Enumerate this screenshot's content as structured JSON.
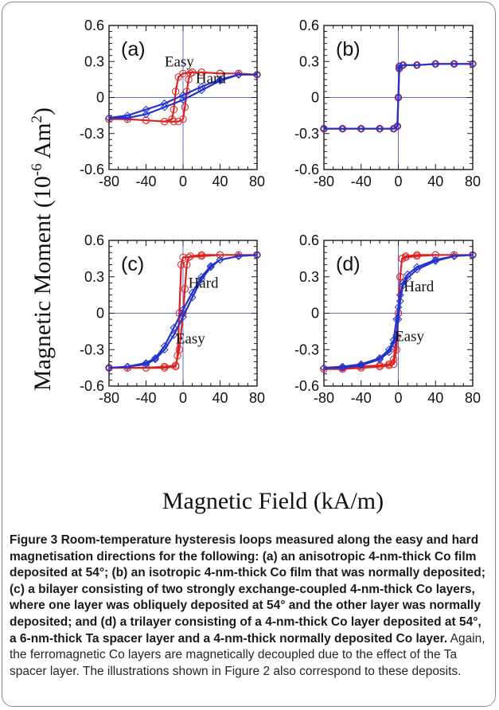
{
  "figure": {
    "y_axis_label": "Magnetic Moment (10",
    "y_axis_label_sup1": "-6",
    "y_axis_label_mid": " Am",
    "y_axis_label_sup2": "2",
    "y_axis_label_end": ")",
    "x_axis_label": "Magnetic Field (kA/m)"
  },
  "chart_data": [
    {
      "type": "line",
      "panel_label": "(a)",
      "x_ticks": [
        "-80",
        "-40",
        "0",
        "40",
        "80"
      ],
      "y_ticks": [
        "0.6",
        "0.3",
        "0",
        "-0.3",
        "-0.6"
      ],
      "xlim": [
        -80,
        80
      ],
      "ylim": [
        -0.6,
        0.6
      ],
      "grid": "zero lines only",
      "annotations": [
        {
          "text": "Easy",
          "x": -4,
          "y": 0.26
        },
        {
          "text": "Hard",
          "x": 30,
          "y": 0.12
        }
      ],
      "series": [
        {
          "role": "easy",
          "color": "#dd2222",
          "marker": "circle",
          "x": [
            -80,
            -60,
            -40,
            -20,
            -10,
            -5,
            0,
            2,
            4,
            6,
            8,
            10,
            20,
            40,
            60,
            80,
            60,
            40,
            20,
            10,
            0,
            -5,
            -8,
            -10,
            -12,
            -20,
            -40,
            -60,
            -80
          ],
          "y": [
            -0.18,
            -0.18,
            -0.19,
            -0.2,
            -0.2,
            -0.2,
            -0.18,
            -0.08,
            0.05,
            0.15,
            0.2,
            0.21,
            0.21,
            0.2,
            0.2,
            0.19,
            0.2,
            0.2,
            0.21,
            0.21,
            0.2,
            0.17,
            0.05,
            -0.1,
            -0.18,
            -0.2,
            -0.19,
            -0.18,
            -0.18
          ]
        },
        {
          "role": "hard",
          "color": "#2233cc",
          "marker": "diamond",
          "x": [
            -80,
            -60,
            -40,
            -20,
            0,
            20,
            40,
            60,
            80,
            60,
            40,
            20,
            0,
            -20,
            -40,
            -60,
            -80
          ],
          "y": [
            -0.17,
            -0.15,
            -0.1,
            -0.05,
            0.02,
            0.09,
            0.15,
            0.19,
            0.19,
            0.19,
            0.14,
            0.06,
            -0.02,
            -0.08,
            -0.14,
            -0.17,
            -0.17
          ]
        }
      ]
    },
    {
      "type": "line",
      "panel_label": "(b)",
      "x_ticks": [
        "-80",
        "-40",
        "0",
        "40",
        "80"
      ],
      "y_ticks": [
        "0.6",
        "0.3",
        "0",
        "-0.3",
        "-0.6"
      ],
      "xlim": [
        -80,
        80
      ],
      "ylim": [
        -0.6,
        0.6
      ],
      "grid": "zero lines only",
      "annotations": [],
      "series": [
        {
          "role": "easy",
          "color": "#dd2222",
          "marker": "circle",
          "x": [
            -80,
            -60,
            -40,
            -20,
            -5,
            -1,
            0,
            1,
            5,
            20,
            40,
            60,
            80,
            60,
            40,
            20,
            5,
            1,
            0,
            -1,
            -5,
            -20,
            -40,
            -60,
            -80
          ],
          "y": [
            -0.26,
            -0.26,
            -0.26,
            -0.26,
            -0.26,
            -0.24,
            0.0,
            0.24,
            0.27,
            0.27,
            0.28,
            0.28,
            0.28,
            0.28,
            0.28,
            0.27,
            0.27,
            0.26,
            0.0,
            -0.24,
            -0.26,
            -0.26,
            -0.26,
            -0.26,
            -0.26
          ]
        },
        {
          "role": "hard",
          "color": "#2233cc",
          "marker": "diamond",
          "x": [
            -80,
            -60,
            -40,
            -20,
            -5,
            -1,
            0,
            1,
            5,
            20,
            40,
            60,
            80,
            60,
            40,
            20,
            5,
            1,
            0,
            -1,
            -5,
            -20,
            -40,
            -60,
            -80
          ],
          "y": [
            -0.26,
            -0.26,
            -0.26,
            -0.26,
            -0.26,
            -0.24,
            0.0,
            0.24,
            0.27,
            0.27,
            0.28,
            0.28,
            0.28,
            0.28,
            0.28,
            0.27,
            0.27,
            0.26,
            0.0,
            -0.24,
            -0.26,
            -0.26,
            -0.26,
            -0.26,
            -0.26
          ]
        }
      ]
    },
    {
      "type": "line",
      "panel_label": "(c)",
      "x_ticks": [
        "-80",
        "-40",
        "0",
        "40",
        "80"
      ],
      "y_ticks": [
        "0.6",
        "0.3",
        "0",
        "-0.3",
        "-0.6"
      ],
      "xlim": [
        -80,
        80
      ],
      "ylim": [
        -0.6,
        0.6
      ],
      "grid": "zero lines only",
      "annotations": [
        {
          "text": "Hard",
          "x": 22,
          "y": 0.21
        },
        {
          "text": "Easy",
          "x": 8,
          "y": -0.25
        }
      ],
      "series": [
        {
          "role": "easy",
          "color": "#dd2222",
          "marker": "circle",
          "x": [
            -80,
            -60,
            -40,
            -20,
            -8,
            -4,
            0,
            2,
            4,
            6,
            8,
            20,
            40,
            60,
            80,
            60,
            40,
            20,
            0,
            -2,
            -4,
            -6,
            -8,
            -20,
            -40,
            -60,
            -80
          ],
          "y": [
            -0.45,
            -0.45,
            -0.45,
            -0.44,
            -0.43,
            -0.3,
            0.0,
            0.2,
            0.4,
            0.46,
            0.47,
            0.48,
            0.48,
            0.48,
            0.48,
            0.48,
            0.48,
            0.47,
            0.46,
            0.4,
            0.0,
            -0.35,
            -0.44,
            -0.45,
            -0.45,
            -0.45,
            -0.45
          ]
        },
        {
          "role": "hard",
          "color": "#2233cc",
          "marker": "diamond",
          "x": [
            -80,
            -60,
            -40,
            -30,
            -20,
            -10,
            0,
            10,
            20,
            30,
            40,
            60,
            80,
            60,
            40,
            30,
            20,
            10,
            0,
            -10,
            -20,
            -30,
            -40,
            -60,
            -80
          ],
          "y": [
            -0.45,
            -0.44,
            -0.41,
            -0.37,
            -0.27,
            -0.12,
            0.03,
            0.17,
            0.3,
            0.39,
            0.44,
            0.47,
            0.48,
            0.47,
            0.44,
            0.38,
            0.28,
            0.13,
            -0.03,
            -0.18,
            -0.3,
            -0.38,
            -0.42,
            -0.44,
            -0.45
          ]
        }
      ]
    },
    {
      "type": "line",
      "panel_label": "(d)",
      "x_ticks": [
        "-80",
        "-40",
        "0",
        "40",
        "80"
      ],
      "y_ticks": [
        "0.6",
        "0.3",
        "0",
        "-0.3",
        "-0.6"
      ],
      "xlim": [
        -80,
        80
      ],
      "ylim": [
        -0.6,
        0.6
      ],
      "grid": "zero lines only",
      "annotations": [
        {
          "text": "Hard",
          "x": 22,
          "y": 0.18
        },
        {
          "text": "Easy",
          "x": 12,
          "y": -0.23
        }
      ],
      "series": [
        {
          "role": "easy",
          "color": "#dd2222",
          "marker": "circle",
          "x": [
            -80,
            -60,
            -40,
            -20,
            -10,
            -5,
            -2,
            0,
            2,
            4,
            8,
            20,
            40,
            60,
            80,
            60,
            40,
            20,
            8,
            4,
            2,
            0,
            -2,
            -5,
            -10,
            -20,
            -40,
            -60,
            -80
          ],
          "y": [
            -0.46,
            -0.45,
            -0.44,
            -0.43,
            -0.42,
            -0.38,
            -0.2,
            0.0,
            0.3,
            0.45,
            0.47,
            0.48,
            0.48,
            0.48,
            0.48,
            0.48,
            0.48,
            0.47,
            0.46,
            0.45,
            0.3,
            0.0,
            -0.3,
            -0.42,
            -0.43,
            -0.44,
            -0.45,
            -0.46,
            -0.46
          ]
        },
        {
          "role": "hard",
          "color": "#2233cc",
          "marker": "diamond",
          "x": [
            -80,
            -60,
            -40,
            -20,
            -10,
            -5,
            -2,
            0,
            2,
            5,
            10,
            20,
            40,
            60,
            80,
            60,
            40,
            20,
            10,
            5,
            2,
            0,
            -2,
            -5,
            -10,
            -20,
            -40,
            -60,
            -80
          ],
          "y": [
            -0.45,
            -0.44,
            -0.42,
            -0.37,
            -0.3,
            -0.22,
            -0.05,
            0.05,
            0.15,
            0.25,
            0.32,
            0.38,
            0.44,
            0.47,
            0.48,
            0.47,
            0.43,
            0.36,
            0.29,
            0.23,
            0.1,
            -0.05,
            -0.18,
            -0.25,
            -0.32,
            -0.38,
            -0.43,
            -0.45,
            -0.45
          ]
        }
      ]
    }
  ],
  "caption": {
    "label": "Figure 3",
    "bold_text": " Room-temperature hysteresis loops measured along the easy and hard magnetisation directions for the following: (a) an anisotropic 4-nm-thick Co film deposited at 54°; (b) an isotropic 4-nm-thick Co film that was normally deposited; (c) a bilayer consisting of two strongly exchange-coupled 4-nm-thick Co layers, where one layer was obliquely deposited at 54° and the other layer was normally deposited; and (d) a trilayer consisting of a 4-nm-thick Co layer deposited at 54°, a 6-nm-thick Ta spacer layer and a 4-nm-thick normally deposited Co layer.",
    "text": " Again, the ferromagnetic Co layers are magnetically decoupled due to the effect of the Ta spacer layer. The illustrations shown in Figure 2 also correspond to these deposits."
  }
}
